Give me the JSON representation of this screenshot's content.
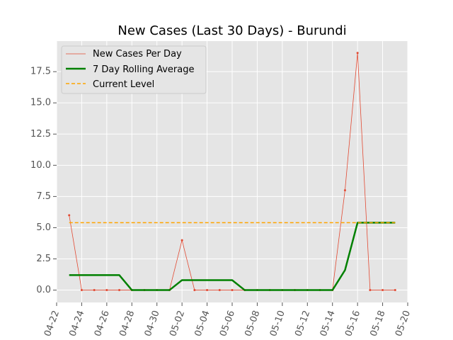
{
  "chart_data": {
    "type": "line",
    "title": "New Cases (Last 30 Days) - Burundi",
    "xlabel": "",
    "ylabel": "",
    "x_tick_labels": [
      "04-22",
      "04-24",
      "04-26",
      "04-28",
      "04-30",
      "05-02",
      "05-04",
      "05-06",
      "05-08",
      "05-10",
      "05-12",
      "05-14",
      "05-16",
      "05-18",
      "05-20"
    ],
    "y_tick_labels": [
      "0.0",
      "2.5",
      "5.0",
      "7.5",
      "10.0",
      "12.5",
      "15.0",
      "17.5"
    ],
    "xlim": [
      "04-22",
      "05-20"
    ],
    "ylim": [
      -0.99,
      19.95
    ],
    "grid": true,
    "legend_position": "top-left",
    "series": [
      {
        "name": "New Cases Per Day",
        "style": "thin line with point markers",
        "color": "#e24a33",
        "x": [
          "04-23",
          "04-24",
          "04-25",
          "04-26",
          "04-27",
          "04-28",
          "04-29",
          "04-30",
          "05-01",
          "05-02",
          "05-03",
          "05-04",
          "05-05",
          "05-06",
          "05-07",
          "05-08",
          "05-09",
          "05-10",
          "05-11",
          "05-12",
          "05-13",
          "05-14",
          "05-15",
          "05-16",
          "05-17",
          "05-18",
          "05-19"
        ],
        "values": [
          6,
          0,
          0,
          0,
          0,
          0,
          0,
          0,
          0,
          4,
          0,
          0,
          0,
          0,
          0,
          0,
          0,
          0,
          0,
          0,
          0,
          0,
          8,
          19,
          0,
          0,
          0
        ]
      },
      {
        "name": "7 Day Rolling Average",
        "style": "thick solid line",
        "color": "#008000",
        "x": [
          "04-23",
          "04-24",
          "04-25",
          "04-26",
          "04-27",
          "04-28",
          "04-29",
          "04-30",
          "05-01",
          "05-02",
          "05-03",
          "05-04",
          "05-05",
          "05-06",
          "05-07",
          "05-08",
          "05-09",
          "05-10",
          "05-11",
          "05-12",
          "05-13",
          "05-14",
          "05-15",
          "05-16",
          "05-17",
          "05-18",
          "05-19"
        ],
        "values": [
          1.2,
          1.2,
          1.2,
          1.2,
          1.2,
          0,
          0,
          0,
          0,
          0.8,
          0.8,
          0.8,
          0.8,
          0.8,
          0,
          0,
          0,
          0,
          0,
          0,
          0,
          0,
          1.6,
          5.4,
          5.4,
          5.4,
          5.4
        ]
      },
      {
        "name": "Current Level",
        "style": "dashed line",
        "color": "#ffa500",
        "x": [
          "04-23",
          "05-19"
        ],
        "values": [
          5.4,
          5.4
        ]
      }
    ]
  }
}
